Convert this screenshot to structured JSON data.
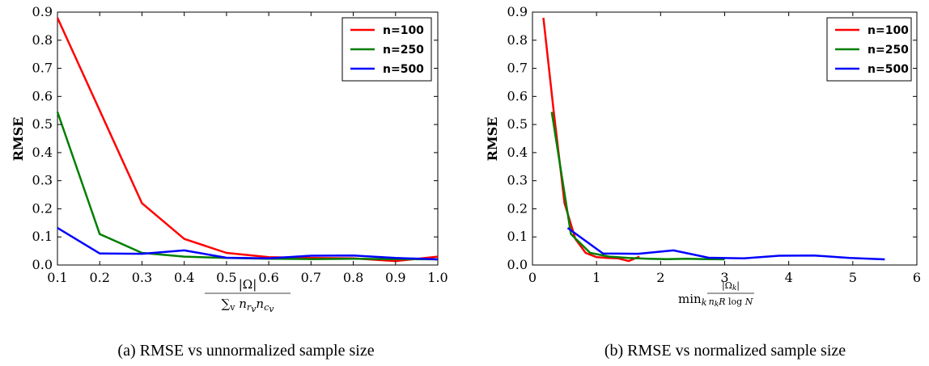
{
  "chart_data": [
    {
      "type": "line",
      "caption": "(a) RMSE vs unnormalized sample size",
      "xlabel_html": "|Ω| / Σ_v n_{r_v} n_{c_v}",
      "ylabel": "RMSE",
      "xlim": [
        0.1,
        1.0
      ],
      "ylim": [
        0.0,
        0.9
      ],
      "xticks": [
        "0.1",
        "0.2",
        "0.3",
        "0.4",
        "0.5",
        "0.6",
        "0.7",
        "0.8",
        "0.9",
        "1.0"
      ],
      "yticks": [
        "0.0",
        "0.1",
        "0.2",
        "0.3",
        "0.4",
        "0.5",
        "0.6",
        "0.7",
        "0.8",
        "0.9"
      ],
      "legend_position": "top-right",
      "series": [
        {
          "name": "n=100",
          "color": "#ff0000",
          "x": [
            0.1,
            0.2,
            0.3,
            0.4,
            0.5,
            0.6,
            0.7,
            0.8,
            0.9,
            1.0
          ],
          "y": [
            0.88,
            0.55,
            0.22,
            0.093,
            0.043,
            0.028,
            0.025,
            0.024,
            0.014,
            0.03
          ]
        },
        {
          "name": "n=250",
          "color": "#007f00",
          "x": [
            0.1,
            0.2,
            0.3,
            0.4,
            0.5,
            0.6,
            0.7,
            0.8,
            0.9,
            1.0
          ],
          "y": [
            0.545,
            0.11,
            0.043,
            0.03,
            0.025,
            0.022,
            0.021,
            0.022,
            0.021,
            0.02
          ]
        },
        {
          "name": "n=500",
          "color": "#0000ff",
          "x": [
            0.1,
            0.2,
            0.3,
            0.4,
            0.5,
            0.6,
            0.7,
            0.8,
            0.9,
            1.0
          ],
          "y": [
            0.132,
            0.041,
            0.04,
            0.052,
            0.026,
            0.024,
            0.033,
            0.034,
            0.025,
            0.02
          ]
        }
      ]
    },
    {
      "type": "line",
      "caption": "(b) RMSE vs normalized sample size",
      "xlabel_html": "min_k |Ω_k| / n_k R log N",
      "ylabel": "RMSE",
      "xlim": [
        0,
        6
      ],
      "ylim": [
        0.0,
        0.9
      ],
      "xticks": [
        "0",
        "1",
        "2",
        "3",
        "4",
        "5",
        "6"
      ],
      "yticks": [
        "0.0",
        "0.1",
        "0.2",
        "0.3",
        "0.4",
        "0.5",
        "0.6",
        "0.7",
        "0.8",
        "0.9"
      ],
      "legend_position": "top-right",
      "series": [
        {
          "name": "n=100",
          "color": "#ff0000",
          "x": [
            0.17,
            0.33,
            0.5,
            0.67,
            0.83,
            1.0,
            1.17,
            1.33,
            1.5,
            1.67
          ],
          "y": [
            0.88,
            0.55,
            0.22,
            0.093,
            0.043,
            0.028,
            0.025,
            0.024,
            0.014,
            0.03
          ]
        },
        {
          "name": "n=250",
          "color": "#007f00",
          "x": [
            0.3,
            0.6,
            0.9,
            1.2,
            1.5,
            1.8,
            2.1,
            2.4,
            2.7,
            3.0
          ],
          "y": [
            0.545,
            0.11,
            0.043,
            0.03,
            0.025,
            0.022,
            0.021,
            0.022,
            0.021,
            0.02
          ]
        },
        {
          "name": "n=500",
          "color": "#0000ff",
          "x": [
            0.55,
            1.1,
            1.65,
            2.2,
            2.75,
            3.3,
            3.85,
            4.4,
            4.95,
            5.5
          ],
          "y": [
            0.132,
            0.041,
            0.04,
            0.052,
            0.026,
            0.024,
            0.033,
            0.034,
            0.025,
            0.02
          ]
        }
      ]
    }
  ]
}
